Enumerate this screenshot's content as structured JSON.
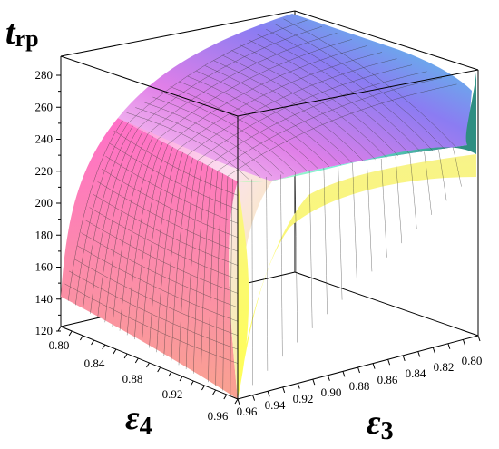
{
  "chart_data": {
    "type": "surface3d",
    "zlabel": {
      "main": "t",
      "sub": "rp"
    },
    "xlabel": {
      "main": "ε",
      "sub": "4"
    },
    "ylabel": {
      "main": "ε",
      "sub": "3"
    },
    "z_ticks": [
      "120",
      "140",
      "160",
      "180",
      "200",
      "220",
      "240",
      "260",
      "280"
    ],
    "x_ticks": [
      "0.80",
      "0.84",
      "0.88",
      "0.92",
      "0.96"
    ],
    "y_ticks": [
      "0.96",
      "0.94",
      "0.92",
      "0.90",
      "0.88",
      "0.86",
      "0.84",
      "0.82",
      "0.80"
    ],
    "eps4_range": [
      0.8,
      0.96
    ],
    "eps3_range": [
      0.8,
      0.96
    ],
    "zlim": [
      115,
      290
    ],
    "surface_samples": {
      "eps4": [
        0.8,
        0.88,
        0.96
      ],
      "eps3": [
        0.8,
        0.88,
        0.96
      ],
      "t_rp": [
        [
          228,
          262,
          290
        ],
        [
          182,
          205,
          262
        ],
        [
          118,
          182,
          142
        ]
      ]
    },
    "colors": {
      "magenta": "#ff6fd0",
      "violet": "#8a7cf0",
      "cyan": "#40e0e0",
      "teal": "#2e8f83",
      "yellow": "#ffff70",
      "salmon": "#f4a08a"
    }
  }
}
